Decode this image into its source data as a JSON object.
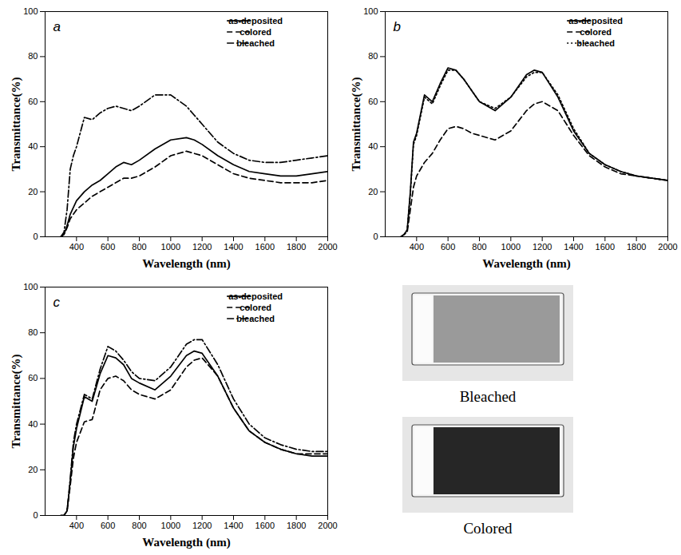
{
  "chart_data": [
    {
      "type": "line",
      "title": "a",
      "xlabel": "Wavelength (nm)",
      "ylabel": "Transmittance(%)",
      "xlim": [
        200,
        2000
      ],
      "xticks": [
        400,
        600,
        800,
        1000,
        1200,
        1400,
        1600,
        1800,
        2000
      ],
      "ylim": [
        0,
        100
      ],
      "yticks": [
        0,
        20,
        40,
        60,
        80,
        100
      ],
      "legend": "upper right",
      "x": [
        300,
        320,
        340,
        360,
        380,
        400,
        450,
        500,
        550,
        600,
        650,
        700,
        750,
        800,
        900,
        1000,
        1100,
        1150,
        1200,
        1300,
        1400,
        1500,
        1600,
        1700,
        1800,
        1900,
        2000
      ],
      "series": [
        {
          "name": "as-deposited",
          "color": "#000000",
          "line_style": "solid",
          "values": [
            0,
            1,
            5,
            10,
            13,
            16,
            20,
            23,
            25,
            28,
            31,
            33,
            32,
            34,
            39,
            43,
            44,
            43,
            41,
            36,
            32,
            29,
            28,
            27,
            27,
            28,
            29
          ]
        },
        {
          "name": "colored",
          "color": "#000000",
          "line_style": "dashed",
          "values": [
            0,
            1,
            4,
            8,
            10,
            12,
            15,
            18,
            20,
            22,
            24,
            26,
            26,
            27,
            31,
            36,
            38,
            37,
            36,
            32,
            28,
            26,
            25,
            24,
            24,
            24,
            25
          ]
        },
        {
          "name": "bleached",
          "color": "#000000",
          "line_style": "dashdot",
          "values": [
            0,
            2,
            12,
            30,
            36,
            40,
            53,
            52,
            55,
            57,
            58,
            57,
            56,
            58,
            63,
            63,
            58,
            54,
            50,
            42,
            37,
            34,
            33,
            33,
            34,
            35,
            36
          ]
        }
      ]
    },
    {
      "type": "line",
      "title": "b",
      "xlabel": "Wavelength (nm)",
      "ylabel": "Transmittance(%)",
      "xlim": [
        200,
        2000
      ],
      "xticks": [
        400,
        600,
        800,
        1000,
        1200,
        1400,
        1600,
        1800,
        2000
      ],
      "ylim": [
        0,
        100
      ],
      "yticks": [
        0,
        20,
        40,
        60,
        80,
        100
      ],
      "legend": "upper right",
      "x": [
        300,
        320,
        340,
        360,
        380,
        400,
        450,
        500,
        550,
        600,
        650,
        700,
        750,
        800,
        900,
        1000,
        1100,
        1150,
        1200,
        1300,
        1400,
        1500,
        1600,
        1700,
        1800,
        1900,
        2000
      ],
      "series": [
        {
          "name": "as-deposited",
          "color": "#000000",
          "line_style": "solid",
          "values": [
            0,
            1,
            3,
            20,
            42,
            46,
            63,
            60,
            68,
            75,
            74,
            70,
            65,
            60,
            56,
            62,
            72,
            74,
            73,
            62,
            47,
            37,
            32,
            29,
            27,
            26,
            25
          ]
        },
        {
          "name": "colored",
          "color": "#000000",
          "line_style": "dashed",
          "values": [
            0,
            1,
            2,
            12,
            22,
            27,
            33,
            37,
            43,
            48,
            49,
            48,
            46,
            45,
            43,
            47,
            56,
            59,
            60,
            56,
            45,
            36,
            31,
            28,
            27,
            26,
            25
          ]
        },
        {
          "name": "bleached",
          "color": "#000000",
          "line_style": "dotted",
          "values": [
            0,
            1,
            3,
            19,
            41,
            45,
            62,
            59,
            67,
            74,
            74,
            70,
            65,
            60,
            57,
            62,
            71,
            73,
            73,
            63,
            48,
            37,
            32,
            29,
            27,
            26,
            25
          ]
        }
      ]
    },
    {
      "type": "line",
      "title": "c",
      "xlabel": "Wavelength (nm)",
      "ylabel": "Transmittance(%)",
      "xlim": [
        200,
        2000
      ],
      "xticks": [
        400,
        600,
        800,
        1000,
        1200,
        1400,
        1600,
        1800,
        2000
      ],
      "ylim": [
        0,
        100
      ],
      "yticks": [
        0,
        20,
        40,
        60,
        80,
        100
      ],
      "legend": "upper right",
      "x": [
        300,
        320,
        340,
        360,
        380,
        400,
        450,
        500,
        550,
        600,
        650,
        700,
        750,
        800,
        900,
        1000,
        1100,
        1150,
        1200,
        1300,
        1400,
        1500,
        1600,
        1700,
        1800,
        1900,
        2000
      ],
      "series": [
        {
          "name": "as-deposited",
          "color": "#000000",
          "line_style": "solid",
          "values": [
            0,
            0,
            2,
            15,
            30,
            38,
            52,
            50,
            62,
            70,
            69,
            66,
            60,
            58,
            55,
            61,
            70,
            72,
            71,
            61,
            47,
            37,
            32,
            29,
            27,
            26,
            26
          ]
        },
        {
          "name": "colored",
          "color": "#000000",
          "line_style": "dashed",
          "values": [
            0,
            0,
            2,
            13,
            25,
            32,
            41,
            42,
            55,
            60,
            61,
            59,
            55,
            53,
            51,
            55,
            65,
            68,
            69,
            61,
            47,
            37,
            32,
            29,
            27,
            27,
            27
          ]
        },
        {
          "name": "bleached",
          "color": "#000000",
          "line_style": "dashdot",
          "values": [
            0,
            0,
            2,
            16,
            32,
            40,
            53,
            51,
            64,
            74,
            72,
            68,
            63,
            60,
            59,
            65,
            75,
            77,
            77,
            66,
            51,
            40,
            34,
            31,
            29,
            28,
            28
          ]
        }
      ]
    }
  ],
  "images": [
    {
      "caption": "Bleached"
    },
    {
      "caption": "Colored"
    }
  ]
}
